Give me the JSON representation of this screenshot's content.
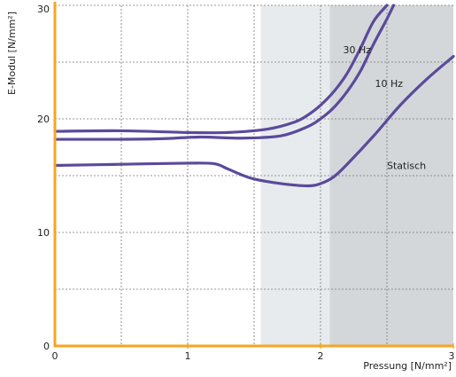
{
  "chart_data": {
    "type": "line",
    "xlabel": "Pressung [N/mm²]",
    "ylabel": "E-Modul [N/mm²]",
    "xlim": [
      0,
      3
    ],
    "ylim": [
      0,
      30
    ],
    "x_ticks": [
      "0",
      "1",
      "2",
      "3"
    ],
    "y_ticks": [
      "0",
      "10",
      "20",
      "30"
    ],
    "grid": true,
    "grid_style": "dashed",
    "axis_color": "#f5a623",
    "line_color": "#5b4a9b",
    "shaded_regions": [
      {
        "x": [
          1.55,
          2.07
        ],
        "color": "#e8ebee"
      },
      {
        "x": [
          2.07,
          3.0
        ],
        "color": "#d3d7da"
      }
    ],
    "series": [
      {
        "name": "30 Hz",
        "points": [
          [
            0,
            18.9
          ],
          [
            0.5,
            18.95
          ],
          [
            1.0,
            18.8
          ],
          [
            1.3,
            18.8
          ],
          [
            1.6,
            19.1
          ],
          [
            1.8,
            19.7
          ],
          [
            1.9,
            20.3
          ],
          [
            2.0,
            21.2
          ],
          [
            2.1,
            22.4
          ],
          [
            2.2,
            24.0
          ],
          [
            2.3,
            26.2
          ],
          [
            2.4,
            28.6
          ],
          [
            2.5,
            30.0
          ]
        ]
      },
      {
        "name": "10 Hz",
        "points": [
          [
            0,
            18.2
          ],
          [
            0.5,
            18.2
          ],
          [
            0.8,
            18.25
          ],
          [
            1.1,
            18.4
          ],
          [
            1.4,
            18.3
          ],
          [
            1.7,
            18.5
          ],
          [
            1.9,
            19.3
          ],
          [
            2.0,
            20.0
          ],
          [
            2.1,
            21.0
          ],
          [
            2.2,
            22.4
          ],
          [
            2.3,
            24.2
          ],
          [
            2.4,
            26.6
          ],
          [
            2.5,
            28.8
          ],
          [
            2.55,
            30.0
          ]
        ]
      },
      {
        "name": "Statisch",
        "points": [
          [
            0,
            15.9
          ],
          [
            0.5,
            16.0
          ],
          [
            1.0,
            16.1
          ],
          [
            1.2,
            16.05
          ],
          [
            1.3,
            15.6
          ],
          [
            1.4,
            15.1
          ],
          [
            1.5,
            14.7
          ],
          [
            1.7,
            14.3
          ],
          [
            1.9,
            14.1
          ],
          [
            2.0,
            14.3
          ],
          [
            2.1,
            14.9
          ],
          [
            2.2,
            16.0
          ],
          [
            2.4,
            18.5
          ],
          [
            2.6,
            21.2
          ],
          [
            2.8,
            23.5
          ],
          [
            3.0,
            25.5
          ]
        ]
      }
    ],
    "annotations": [
      {
        "text": "30 Hz",
        "x": 2.17,
        "y": 25.8
      },
      {
        "text": "10 Hz",
        "x": 2.41,
        "y": 22.8
      },
      {
        "text": "Statisch",
        "x": 2.5,
        "y": 15.6
      }
    ]
  }
}
